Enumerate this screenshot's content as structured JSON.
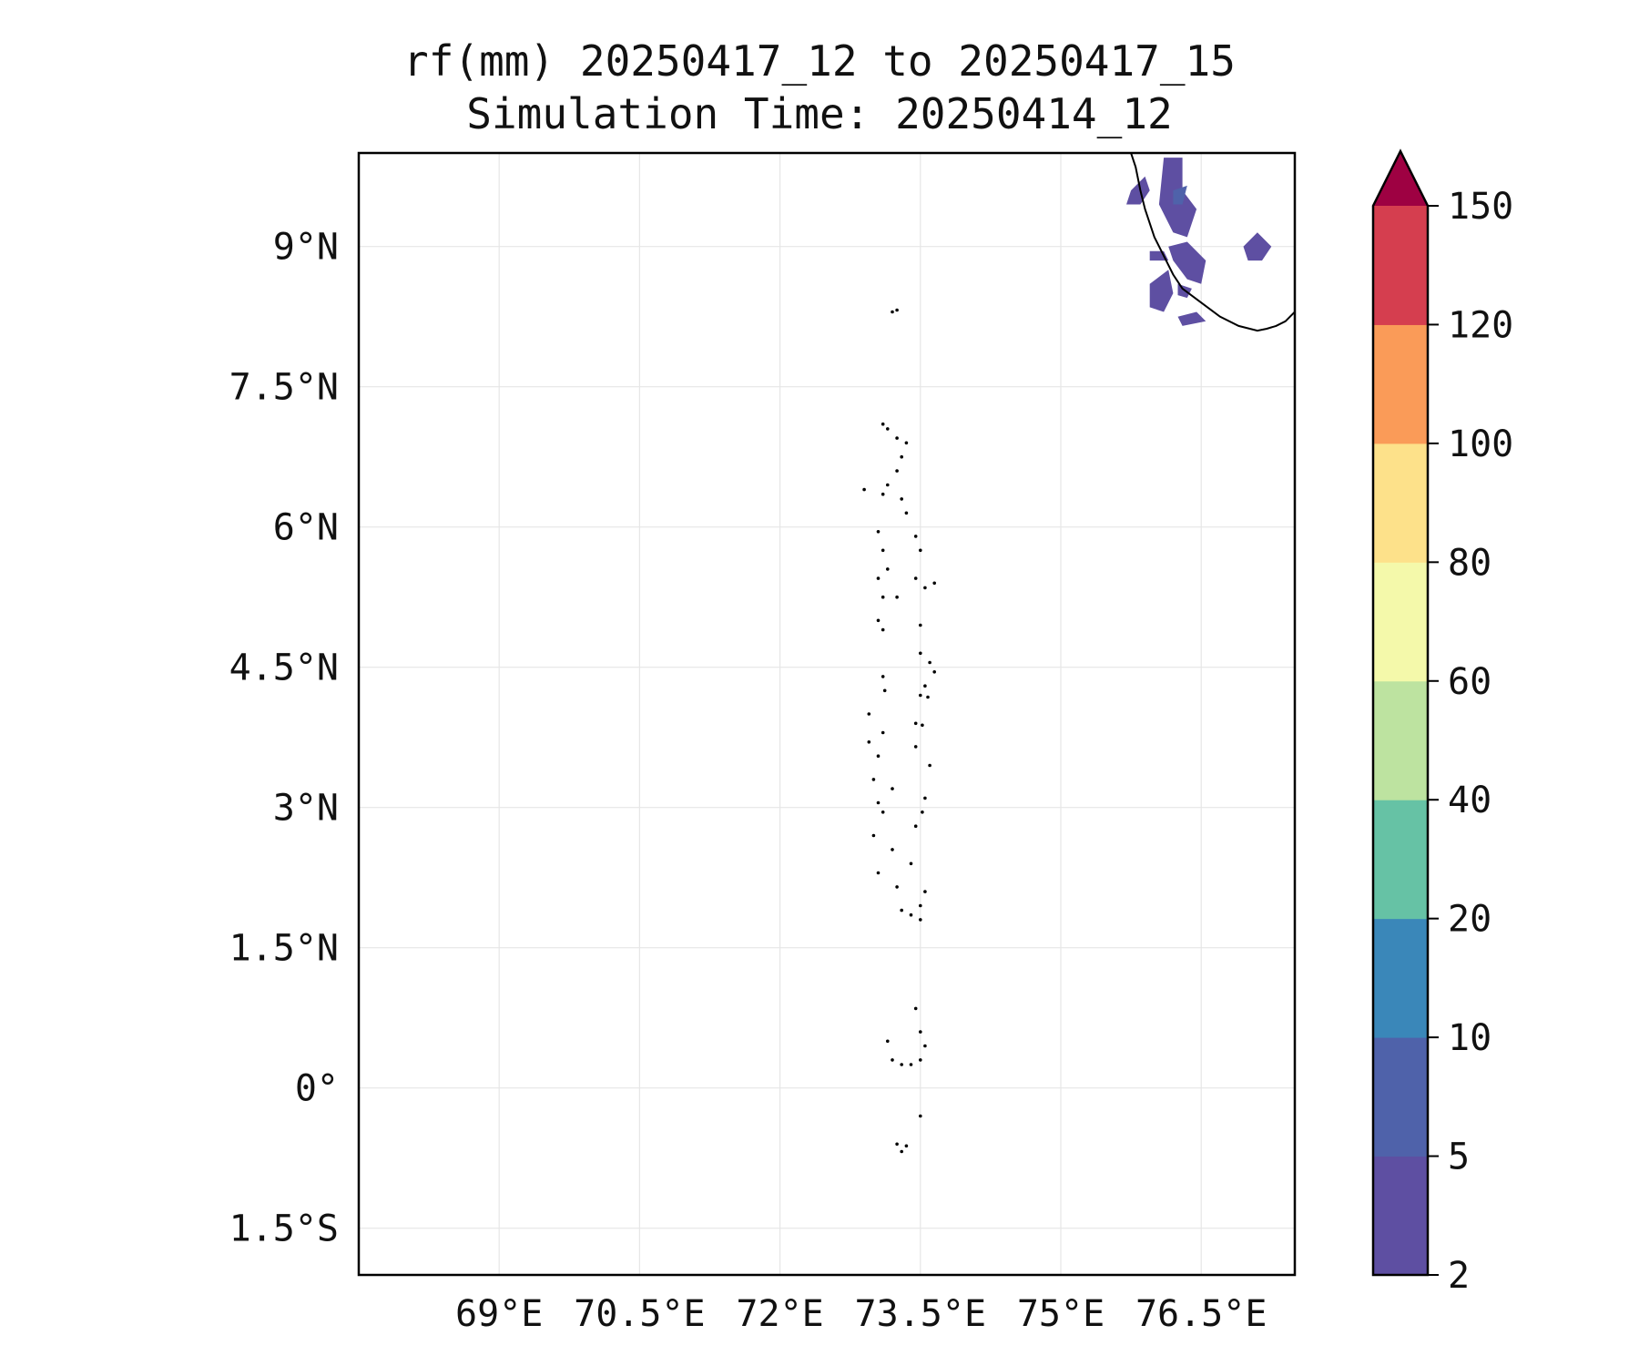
{
  "title": {
    "line1": "rf(mm) 20250417_12 to 20250417_15",
    "line2": "Simulation Time: 20250414_12"
  },
  "map": {
    "lon_range": [
      67.5,
      77.5
    ],
    "lat_range": [
      -2.0,
      10.0
    ],
    "x_ticks": [
      69,
      70.5,
      72,
      73.5,
      75,
      76.5
    ],
    "x_tick_labels": [
      "69°E",
      "70.5°E",
      "72°E",
      "73.5°E",
      "75°E",
      "76.5°E"
    ],
    "y_ticks": [
      -1.5,
      0,
      1.5,
      3,
      4.5,
      6,
      7.5,
      9
    ],
    "y_tick_labels": [
      "1.5°S",
      "0°",
      "1.5°N",
      "3°N",
      "4.5°N",
      "6°N",
      "7.5°N",
      "9°N"
    ],
    "grid": true,
    "coastline_color": "#000000",
    "islands": [
      [
        73.2,
        8.3
      ],
      [
        73.25,
        8.32
      ],
      [
        73.1,
        7.1
      ],
      [
        73.15,
        7.05
      ],
      [
        73.25,
        6.95
      ],
      [
        73.35,
        6.9
      ],
      [
        73.3,
        6.75
      ],
      [
        73.25,
        6.6
      ],
      [
        73.15,
        6.45
      ],
      [
        72.9,
        6.4
      ],
      [
        73.1,
        6.35
      ],
      [
        73.3,
        6.3
      ],
      [
        73.35,
        6.15
      ],
      [
        73.05,
        5.95
      ],
      [
        73.1,
        5.75
      ],
      [
        73.15,
        5.55
      ],
      [
        73.05,
        5.45
      ],
      [
        73.1,
        5.25
      ],
      [
        73.25,
        5.25
      ],
      [
        73.05,
        5.0
      ],
      [
        73.1,
        4.9
      ],
      [
        73.45,
        5.9
      ],
      [
        73.5,
        5.75
      ],
      [
        73.45,
        5.45
      ],
      [
        73.55,
        5.35
      ],
      [
        73.65,
        5.4
      ],
      [
        73.5,
        4.95
      ],
      [
        73.5,
        4.65
      ],
      [
        73.6,
        4.55
      ],
      [
        73.65,
        4.45
      ],
      [
        73.55,
        4.3
      ],
      [
        73.5,
        4.2
      ],
      [
        73.58,
        4.18
      ],
      [
        73.45,
        3.9
      ],
      [
        73.52,
        3.88
      ],
      [
        73.45,
        3.65
      ],
      [
        73.6,
        3.45
      ],
      [
        73.55,
        3.1
      ],
      [
        73.52,
        2.95
      ],
      [
        73.45,
        2.8
      ],
      [
        73.1,
        4.4
      ],
      [
        73.12,
        4.25
      ],
      [
        72.95,
        4.0
      ],
      [
        73.1,
        3.8
      ],
      [
        73.05,
        3.55
      ],
      [
        72.95,
        3.7
      ],
      [
        73.0,
        3.3
      ],
      [
        73.2,
        3.2
      ],
      [
        73.05,
        3.05
      ],
      [
        73.1,
        2.95
      ],
      [
        73.0,
        2.7
      ],
      [
        73.2,
        2.55
      ],
      [
        73.4,
        2.4
      ],
      [
        73.05,
        2.3
      ],
      [
        73.25,
        2.15
      ],
      [
        73.55,
        2.1
      ],
      [
        73.5,
        1.95
      ],
      [
        73.4,
        1.85
      ],
      [
        73.5,
        1.8
      ],
      [
        73.3,
        1.9
      ],
      [
        73.45,
        0.85
      ],
      [
        73.5,
        0.6
      ],
      [
        73.55,
        0.45
      ],
      [
        73.15,
        0.5
      ],
      [
        73.2,
        0.3
      ],
      [
        73.3,
        0.25
      ],
      [
        73.4,
        0.25
      ],
      [
        73.5,
        0.3
      ],
      [
        73.5,
        -0.3
      ],
      [
        73.25,
        -0.6
      ],
      [
        73.3,
        -0.68
      ],
      [
        73.35,
        -0.62
      ]
    ],
    "india_coast": [
      [
        75.75,
        10.0
      ],
      [
        75.8,
        9.85
      ],
      [
        75.85,
        9.6
      ],
      [
        75.9,
        9.4
      ],
      [
        76.0,
        9.1
      ],
      [
        76.1,
        8.9
      ],
      [
        76.2,
        8.7
      ],
      [
        76.3,
        8.55
      ],
      [
        76.5,
        8.4
      ],
      [
        76.7,
        8.25
      ],
      [
        76.9,
        8.15
      ],
      [
        77.1,
        8.1
      ],
      [
        77.2,
        8.12
      ],
      [
        77.3,
        8.15
      ],
      [
        77.4,
        8.2
      ],
      [
        77.5,
        8.3
      ]
    ],
    "rain_patches": [
      {
        "level": "2-5",
        "points": [
          [
            75.75,
            9.6
          ],
          [
            75.9,
            9.75
          ],
          [
            75.95,
            9.6
          ],
          [
            75.85,
            9.45
          ],
          [
            75.7,
            9.45
          ]
        ]
      },
      {
        "level": "2-5",
        "points": [
          [
            76.1,
            9.95
          ],
          [
            76.3,
            9.95
          ],
          [
            76.3,
            9.6
          ],
          [
            76.45,
            9.4
          ],
          [
            76.35,
            9.1
          ],
          [
            76.2,
            9.15
          ],
          [
            76.05,
            9.45
          ]
        ]
      },
      {
        "level": "5-10",
        "points": [
          [
            76.2,
            9.6
          ],
          [
            76.35,
            9.65
          ],
          [
            76.3,
            9.45
          ],
          [
            76.2,
            9.45
          ]
        ]
      },
      {
        "level": "2-5",
        "points": [
          [
            76.15,
            9.0
          ],
          [
            76.35,
            9.05
          ],
          [
            76.55,
            8.85
          ],
          [
            76.5,
            8.6
          ],
          [
            76.35,
            8.65
          ],
          [
            76.2,
            8.85
          ]
        ]
      },
      {
        "level": "2-5",
        "points": [
          [
            75.95,
            8.95
          ],
          [
            76.1,
            8.95
          ],
          [
            76.15,
            8.85
          ],
          [
            75.95,
            8.85
          ]
        ]
      },
      {
        "level": "2-5",
        "points": [
          [
            75.95,
            8.6
          ],
          [
            76.15,
            8.75
          ],
          [
            76.2,
            8.5
          ],
          [
            76.1,
            8.3
          ],
          [
            75.95,
            8.35
          ]
        ]
      },
      {
        "level": "2-5",
        "points": [
          [
            76.25,
            8.6
          ],
          [
            76.4,
            8.55
          ],
          [
            76.35,
            8.45
          ],
          [
            76.25,
            8.48
          ]
        ]
      },
      {
        "level": "2-5",
        "points": [
          [
            76.25,
            8.25
          ],
          [
            76.45,
            8.3
          ],
          [
            76.55,
            8.2
          ],
          [
            76.3,
            8.15
          ]
        ]
      },
      {
        "level": "2-5",
        "points": [
          [
            76.95,
            9.0
          ],
          [
            77.1,
            9.15
          ],
          [
            77.25,
            9.0
          ],
          [
            77.15,
            8.85
          ],
          [
            77.0,
            8.85
          ]
        ]
      }
    ]
  },
  "colorbar": {
    "boundaries": [
      2,
      5,
      10,
      20,
      40,
      60,
      80,
      100,
      120,
      150
    ],
    "tick_labels": [
      "2",
      "5",
      "10",
      "20",
      "40",
      "60",
      "80",
      "100",
      "120",
      "150"
    ],
    "colors": [
      "#5e4fa2",
      "#4f62aa",
      "#3a87b9",
      "#66c2a5",
      "#bde3a0",
      "#f4f9aa",
      "#fde18a",
      "#fa9b58",
      "#d53e4f"
    ],
    "extend_color": "#9e0142"
  }
}
